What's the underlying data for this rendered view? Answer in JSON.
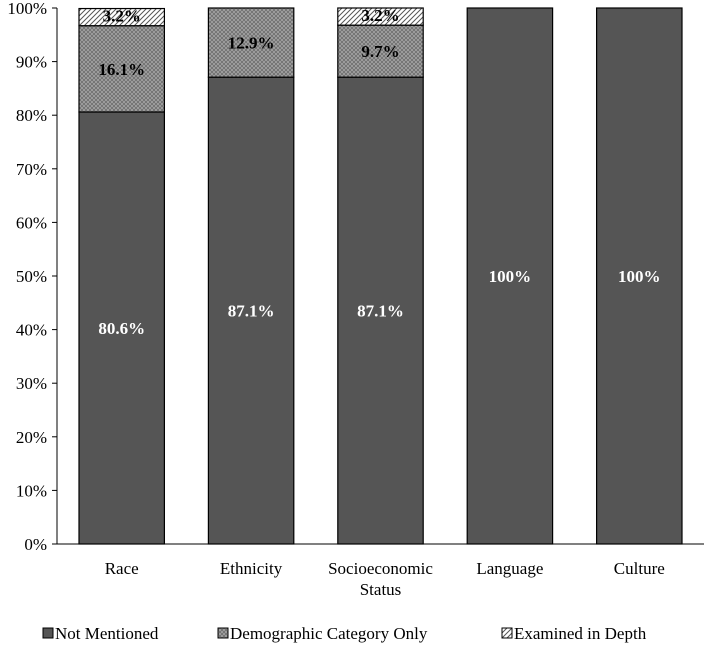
{
  "chart_data": {
    "type": "bar",
    "stacked": true,
    "categories": [
      "Race",
      "Ethnicity",
      "Socioeconomic\nStatus",
      "Language",
      "Culture"
    ],
    "series": [
      {
        "name": "Not Mentioned",
        "values": [
          80.6,
          87.1,
          87.1,
          100,
          100
        ],
        "labels": [
          "80.6%",
          "87.1%",
          "87.1%",
          "100%",
          "100%"
        ],
        "color": "#555555",
        "pattern": "solid"
      },
      {
        "name": "Demographic Category Only",
        "values": [
          16.1,
          12.9,
          9.7,
          0,
          0
        ],
        "labels": [
          "16.1%",
          "12.9%",
          "9.7%",
          "",
          ""
        ],
        "color": "#aaaaaa",
        "pattern": "crosshatch"
      },
      {
        "name": "Examined in Depth",
        "values": [
          3.2,
          0,
          3.2,
          0,
          0
        ],
        "labels": [
          "3.2%",
          "",
          "3.2%",
          "",
          ""
        ],
        "color": "#ffffff",
        "pattern": "diagonal"
      }
    ],
    "yticks": [
      "0%",
      "10%",
      "20%",
      "30%",
      "40%",
      "50%",
      "60%",
      "70%",
      "80%",
      "90%",
      "100%"
    ],
    "ylim": [
      0,
      100
    ],
    "grid": false,
    "legend": "bottom",
    "title": "",
    "xlabel": "",
    "ylabel": ""
  }
}
